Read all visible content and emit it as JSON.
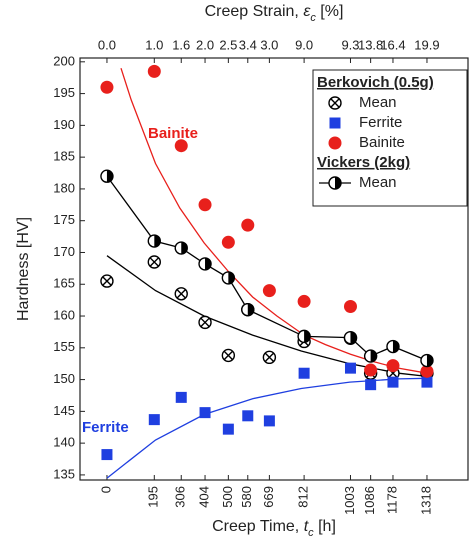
{
  "chart_data": {
    "type": "scatter",
    "xlabel": [
      "Creep Time, ",
      "t",
      "c",
      " [h]"
    ],
    "x2label": [
      "Creep Strain, ",
      "ε",
      "c",
      " [%]"
    ],
    "ylabel": "Hardness [HV]",
    "xlim": [
      -111,
      1487
    ],
    "ylim": [
      134.2,
      200.6
    ],
    "xticks": [
      0,
      195,
      306,
      404,
      500,
      580,
      669,
      812,
      1003,
      1086,
      1178,
      1318
    ],
    "x2ticks": [
      {
        "value": 0,
        "label": "0.0"
      },
      {
        "value": 195,
        "label": "1.0"
      },
      {
        "value": 306,
        "label": "1.6"
      },
      {
        "value": 404,
        "label": "2.0"
      },
      {
        "value": 500,
        "label": "2.5"
      },
      {
        "value": 580,
        "label": "3.4"
      },
      {
        "value": 669,
        "label": "3.0"
      },
      {
        "value": 812,
        "label": "9.0"
      },
      {
        "value": 1003,
        "label": "9.3"
      },
      {
        "value": 1086,
        "label": "13.8"
      },
      {
        "value": 1178,
        "label": "16.4"
      },
      {
        "value": 1318,
        "label": "19.9"
      }
    ],
    "yticks": [
      135,
      140,
      145,
      150,
      155,
      160,
      165,
      170,
      175,
      180,
      185,
      190,
      195,
      200
    ],
    "series": [
      {
        "name": "Mean",
        "marker": "crossed-circle",
        "color": "#000000",
        "x": [
          0,
          195,
          306,
          404,
          500,
          580,
          669,
          812,
          1003,
          1086,
          1178,
          1318
        ],
        "values": [
          165.5,
          168.5,
          163.5,
          159,
          153.8,
          161,
          153.5,
          156,
          156.5,
          151,
          151,
          151
        ]
      },
      {
        "name": "Ferrite",
        "marker": "square",
        "color": "#1f3fe0",
        "x": [
          0,
          195,
          306,
          404,
          500,
          580,
          669,
          812,
          1003,
          1086,
          1178,
          1318
        ],
        "values": [
          138.2,
          143.7,
          147.2,
          144.8,
          142.2,
          144.3,
          143.5,
          151,
          151.8,
          149.2,
          149.6,
          149.6
        ]
      },
      {
        "name": "Bainite",
        "marker": "circle",
        "color": "#e8201c",
        "x": [
          0,
          195,
          306,
          404,
          500,
          580,
          669,
          812,
          1003,
          1086,
          1178,
          1318
        ],
        "values": [
          196,
          198.5,
          186.8,
          177.5,
          171.6,
          174.3,
          164,
          162.3,
          161.5,
          151.5,
          152.2,
          151.3
        ]
      },
      {
        "name": "Mean",
        "marker": "half-circle",
        "line": true,
        "color": "#000000",
        "x": [
          0,
          195,
          306,
          404,
          500,
          580,
          812,
          1003,
          1086,
          1178,
          1318
        ],
        "values": [
          182,
          171.8,
          170.7,
          168.2,
          166,
          161,
          156.8,
          156.6,
          153.7,
          155.2,
          153
        ]
      }
    ],
    "fit_curves": [
      {
        "color": "#e8201c",
        "x": [
          58,
          100,
          200,
          300,
          400,
          500,
          600,
          700,
          812,
          900,
          1003,
          1100,
          1200,
          1318
        ],
        "values": [
          199,
          194,
          184,
          177,
          171.5,
          167,
          163,
          160,
          157,
          155.5,
          154,
          152.8,
          151.8,
          151
        ]
      },
      {
        "color": "#000000",
        "x": [
          0,
          200,
          400,
          600,
          800,
          1000,
          1200,
          1318
        ],
        "values": [
          169.5,
          164,
          160,
          157,
          154.5,
          152.5,
          151,
          150.5
        ]
      },
      {
        "color": "#1f3fe0",
        "x": [
          0,
          200,
          400,
          600,
          800,
          1000,
          1200,
          1318
        ],
        "values": [
          134.5,
          140.5,
          144.5,
          147,
          148.6,
          149.6,
          150.1,
          150.2
        ]
      }
    ],
    "legend": {
      "position": "upper right",
      "groups": [
        {
          "title": "Berkovich (0.5g)",
          "series": [
            0,
            1,
            2
          ]
        },
        {
          "title": "Vickers (2kg)",
          "series": [
            3
          ]
        }
      ]
    },
    "annotations": [
      {
        "text": "Bainite",
        "color": "#e8201c"
      },
      {
        "text": "Ferrite",
        "color": "#1f3fe0"
      }
    ]
  }
}
